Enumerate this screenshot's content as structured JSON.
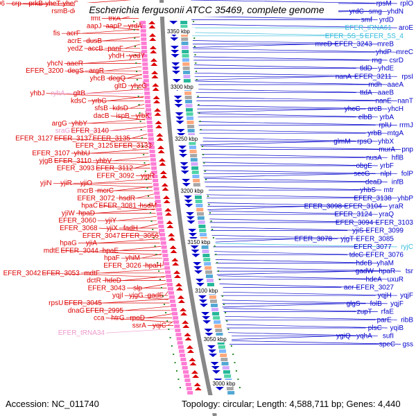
{
  "header": {
    "title": "Escherichia fergusonii ATCC 35469, complete genome"
  },
  "footer": {
    "accession": "Accession: NC_011740",
    "summary": "Topology: circular; Length: 4,588,711 bp; Genes: 4,440"
  },
  "colors": {
    "forward_strand": "#dd0000",
    "reverse_strand": "#0000cc",
    "rna_pink": "#ee99cc",
    "rna_cyan": "#33bbdd",
    "backbone": "#888888",
    "tick_marks": "#228822"
  },
  "backbone_ticks": [
    "3350 kbp",
    "3300 kbp",
    "3250 kbp",
    "3200 kbp",
    "3150 kbp",
    "3100 kbp",
    "3050 kbp",
    "3000 kbp"
  ],
  "left_labels": [
    "prkB-yheT-yheS",
    "crp",
    "EFER_3306",
    "mscL",
    "rsmB-def",
    "trkA",
    "fmt",
    "yrdA",
    "aapP",
    "aapJ",
    "acrF",
    "fis",
    "dusB",
    "acrE",
    "panF",
    "accB",
    "yedZ",
    "yedY",
    "yhdH",
    "aaeR",
    "yhcN",
    "argR",
    "degS",
    "EFER_3200",
    "degQ",
    "yhcB",
    "yhcG",
    "gltD",
    "gltB",
    "ryhA",
    "yhbJ",
    "yrbG",
    "kdsC",
    "kdsD",
    "sfsB",
    "yrbK",
    "ispB",
    "dacB",
    "yhbY",
    "argG",
    "EFER_3140",
    "sraG",
    "EFER_3135",
    "EFER_3137",
    "EFER_3127",
    "EFER_3133",
    "EFER_3125",
    "yhbU",
    "EFER_3107",
    "yhbV",
    "EFER_3110",
    "yjgB",
    "EFER_3112",
    "EFER_3093",
    "yjgR",
    "EFER_3092",
    "yjiO",
    "yjiR",
    "yjiN",
    "mcrC",
    "mcrB",
    "hsdR",
    "EFER_3072",
    "hsdM",
    "EFER_3081",
    "hpaC",
    "hpaD",
    "yjiW",
    "yjiY",
    "EFER_3060",
    "fadH",
    "yjiX",
    "EFER_3068",
    "EFER_3056",
    "EFER_3047",
    "yjiA",
    "hpaG",
    "hpaE",
    "EFER_3044",
    "mdtE",
    "yhiM",
    "hpaF",
    "hpaH",
    "EFER_3026",
    "mdtF",
    "EFER_3053",
    "EFER_3042",
    "hdeD",
    "dctR",
    "slp",
    "EFER_3043",
    "gadE",
    "yjgG",
    "yqjI",
    "EFER_3045",
    "rpsU",
    "EFER_2995",
    "dnaG",
    "rpoD",
    "htrG",
    "cca",
    "yqiC",
    "ssrA",
    "EFER_tRNA34"
  ],
  "right_labels": [
    "rplO",
    "rpsM",
    "yhdN",
    "smg",
    "yrdC",
    "yrdD",
    "smf",
    "aroE",
    "EFER_tRNA61",
    "EFER_5S_4",
    "EFER_5S_5",
    "mreB",
    "EFER_3243",
    "mreD",
    "mreC",
    "yhdP",
    "csrD",
    "rng",
    "yhdE",
    "tldD",
    "rpsI",
    "EFER_3211",
    "nanA",
    "aaeA",
    "mdh",
    "aaeB",
    "ttdA",
    "nanT",
    "nanE",
    "yhcH",
    "arcB",
    "yhcC",
    "yrbA",
    "elbB",
    "rrmJ",
    "rplU",
    "mtgA",
    "yrbB",
    "yhbX",
    "rpsO",
    "glmM",
    "pnp",
    "murA",
    "hflB",
    "nusA",
    "yrbF",
    "obgE",
    "folP",
    "nlpI",
    "secG",
    "infB",
    "deaD",
    "mtr",
    "yhbS",
    "yhbP",
    "EFER_3138",
    "yraR",
    "EFER_3104",
    "EFER_3098",
    "yraQ",
    "EFER_3124",
    "EFER_3103",
    "EFER_3094",
    "EFER_3099",
    "yjiS",
    "EFER_3085",
    "yjgT",
    "EFER_3078",
    "ryjC",
    "EFER_3077",
    "EFER_3076",
    "tdcC",
    "yhaM",
    "hdeB",
    "tsr",
    "hpaR",
    "gadW",
    "uxuR",
    "hdeA",
    "EFER_3027",
    "aer",
    "yqjF",
    "yqjH",
    "yqjF",
    "folB",
    "glgS",
    "rfaE",
    "zupT",
    "ribB",
    "parE",
    "yqiB",
    "plsC",
    "sufI",
    "yqhA",
    "ygiQ",
    "gss",
    "speC"
  ],
  "highlight_labels": {
    "pink": [
      "ryhA",
      "sraG",
      "EFER_tRNA34"
    ],
    "cyan": [
      "EFER_tRNA61",
      "EFER_5S_4",
      "EFER_5S_5",
      "ryjC"
    ]
  }
}
